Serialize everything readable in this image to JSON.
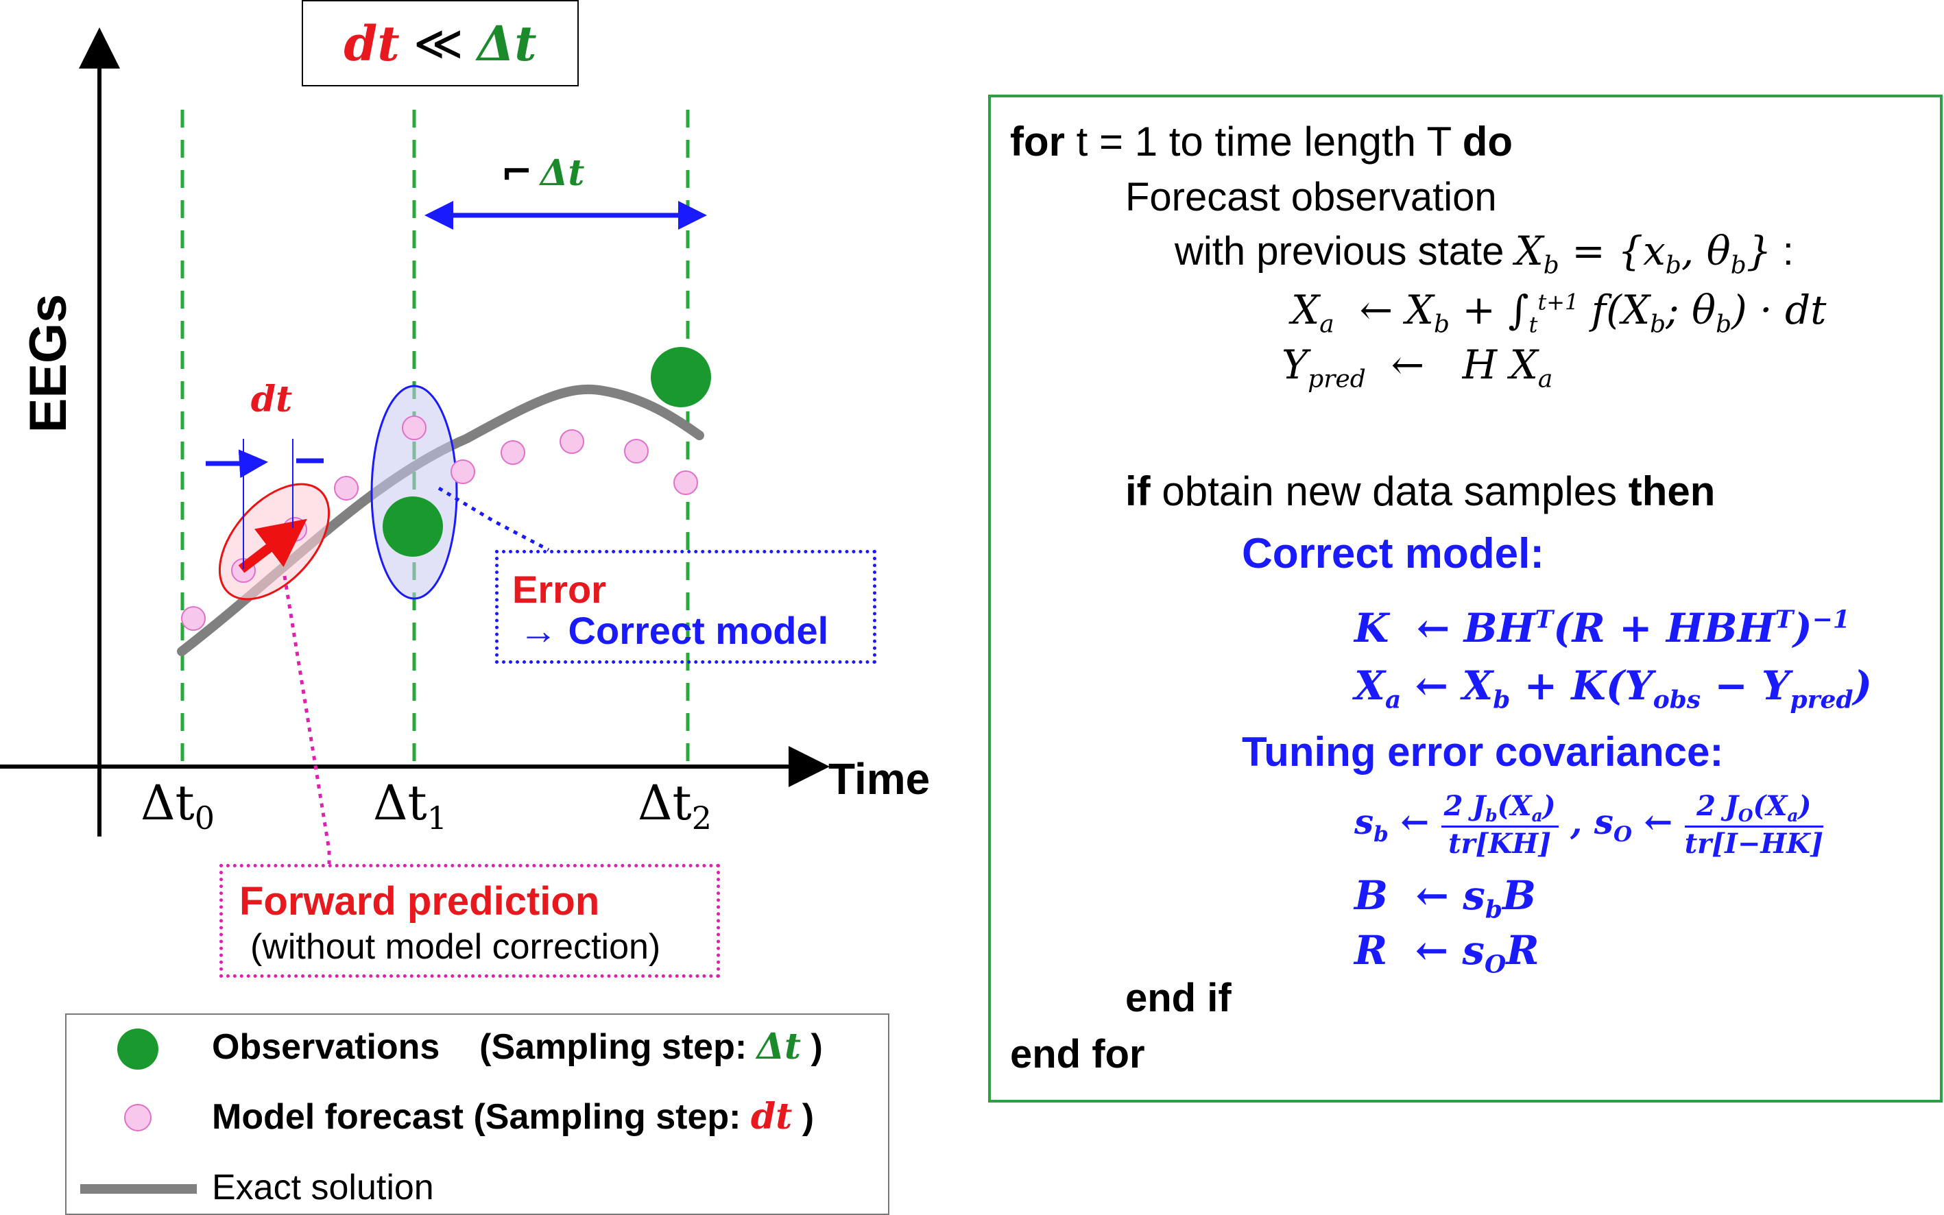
{
  "title": {
    "lhs": "dt",
    "op": "≪",
    "rhs": "Δt"
  },
  "plot": {
    "y_axis_label": "EEGs",
    "x_axis_label": "Time",
    "ticks": [
      {
        "base": "Δt",
        "sub": "0"
      },
      {
        "base": "Δt",
        "sub": "1"
      },
      {
        "base": "Δt",
        "sub": "2"
      }
    ],
    "dt_label": "dt",
    "delta_t_label": "Δt",
    "delta_t_marker": "⌐",
    "colors": {
      "observation": "#1a9a2e",
      "forecast_fill": "#f8c8ec",
      "forecast_stroke": "#e070c8",
      "exact_solution": "#808080",
      "guide_lines": "#2aa83a",
      "arrow_blue": "#1a1aff",
      "arrow_red": "#ee1111"
    }
  },
  "annotations": {
    "error_title": "Error",
    "error_action": "→ Correct model",
    "forward_title": "Forward prediction",
    "forward_sub": "(without model correction)"
  },
  "legend": {
    "observations": {
      "label": "Observations",
      "step_prefix": "(Sampling step:",
      "step_symbol": "Δt",
      "step_suffix": ")"
    },
    "forecast": {
      "label": "Model forecast",
      "step_prefix": "(Sampling step:",
      "step_symbol": "dt",
      "step_suffix": ")"
    },
    "exact": {
      "label": "Exact solution"
    }
  },
  "algorithm": {
    "for_kw": "for",
    "for_text": "t = 1 to time length T",
    "do_kw": "do",
    "forecast_line1": "Forecast observation",
    "forecast_line2": "with previous state",
    "if_kw": "if",
    "if_text": "obtain new data samples",
    "then_kw": "then",
    "correct_model": "Correct model:",
    "tuning": "Tuning error covariance:",
    "end_if": "end if",
    "end_for": "end for"
  }
}
